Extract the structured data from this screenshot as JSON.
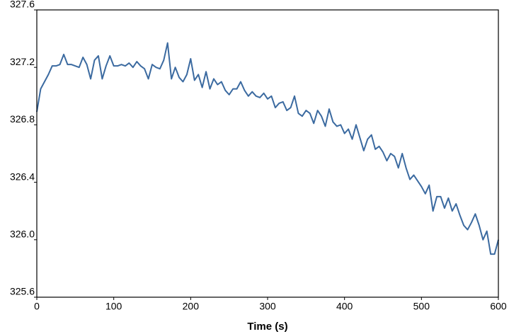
{
  "chart_data": {
    "type": "line",
    "x_label": "Time (s)",
    "x": [
      0,
      5,
      10,
      15,
      20,
      25,
      30,
      35,
      40,
      45,
      50,
      55,
      60,
      65,
      70,
      75,
      80,
      85,
      90,
      95,
      100,
      105,
      110,
      115,
      120,
      125,
      130,
      135,
      140,
      145,
      150,
      155,
      160,
      165,
      170,
      175,
      180,
      185,
      190,
      195,
      200,
      205,
      210,
      215,
      220,
      225,
      230,
      235,
      240,
      245,
      250,
      255,
      260,
      265,
      270,
      275,
      280,
      285,
      290,
      295,
      300,
      305,
      310,
      315,
      320,
      325,
      330,
      335,
      340,
      345,
      350,
      355,
      360,
      365,
      370,
      375,
      380,
      385,
      390,
      395,
      400,
      405,
      410,
      415,
      420,
      425,
      430,
      435,
      440,
      445,
      450,
      455,
      460,
      465,
      470,
      475,
      480,
      485,
      490,
      495,
      500,
      505,
      510,
      515,
      520,
      525,
      530,
      535,
      540,
      545,
      550,
      555,
      560,
      565,
      570,
      575,
      580,
      585,
      590,
      595,
      600
    ],
    "series": [
      {
        "color": "#3b6aa0",
        "values": [
          326.89,
          327.05,
          327.1,
          327.15,
          327.21,
          327.21,
          327.22,
          327.29,
          327.22,
          327.22,
          327.21,
          327.2,
          327.27,
          327.22,
          327.12,
          327.25,
          327.28,
          327.12,
          327.21,
          327.28,
          327.21,
          327.21,
          327.22,
          327.21,
          327.23,
          327.2,
          327.24,
          327.21,
          327.19,
          327.12,
          327.22,
          327.2,
          327.19,
          327.25,
          327.37,
          327.12,
          327.2,
          327.13,
          327.1,
          327.15,
          327.26,
          327.11,
          327.15,
          327.06,
          327.17,
          327.05,
          327.12,
          327.08,
          327.1,
          327.04,
          327.01,
          327.05,
          327.05,
          327.1,
          327.04,
          327.0,
          327.03,
          327.0,
          326.99,
          327.02,
          326.98,
          327.0,
          326.92,
          326.95,
          326.96,
          326.9,
          326.92,
          327.0,
          326.88,
          326.86,
          326.9,
          326.88,
          326.81,
          326.9,
          326.86,
          326.79,
          326.91,
          326.82,
          326.79,
          326.8,
          326.74,
          326.77,
          326.7,
          326.8,
          326.71,
          326.62,
          326.7,
          326.73,
          326.63,
          326.65,
          326.61,
          326.55,
          326.6,
          326.58,
          326.5,
          326.6,
          326.5,
          326.42,
          326.45,
          326.41,
          326.37,
          326.32,
          326.38,
          326.2,
          326.3,
          326.3,
          326.22,
          326.29,
          326.2,
          326.25,
          326.17,
          326.1,
          326.07,
          326.12,
          326.18,
          326.1,
          326.0,
          326.06,
          325.9,
          325.9,
          326.0
        ]
      }
    ],
    "xlim": [
      0,
      600
    ],
    "xticks": [
      0,
      100,
      200,
      300,
      400,
      500,
      600
    ],
    "ylim": [
      325.6,
      327.6
    ],
    "yticks": [
      325.6,
      {
        "value": 326,
        "label": "326.0"
      },
      326.4,
      326.8,
      327.2,
      327.6
    ]
  }
}
